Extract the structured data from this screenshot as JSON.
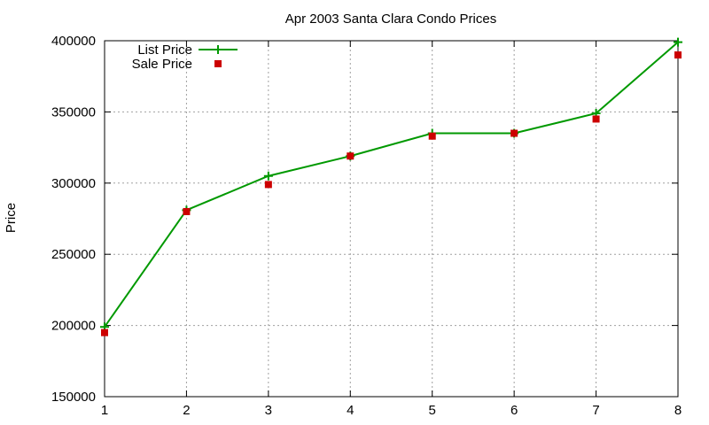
{
  "chart_data": {
    "type": "line",
    "title": "Apr 2003 Santa Clara Condo Prices",
    "ylabel": "Price",
    "xlabel": "",
    "x": [
      1,
      2,
      3,
      4,
      5,
      6,
      7,
      8
    ],
    "xlim": [
      1,
      8
    ],
    "ylim": [
      150000,
      400000
    ],
    "xticks": [
      1,
      2,
      3,
      4,
      5,
      6,
      7,
      8
    ],
    "yticks": [
      150000,
      200000,
      250000,
      300000,
      350000,
      400000
    ],
    "grid": true,
    "legend_position": "top-left",
    "series": [
      {
        "name": "List Price",
        "style": "line+plus-markers",
        "color": "#009900",
        "values": [
          199000,
          281000,
          305000,
          319000,
          335000,
          335000,
          349000,
          399000
        ]
      },
      {
        "name": "Sale Price",
        "style": "square-markers",
        "color": "#cc0000",
        "values": [
          195000,
          280000,
          299000,
          319000,
          333000,
          335000,
          345000,
          390000
        ]
      }
    ]
  }
}
